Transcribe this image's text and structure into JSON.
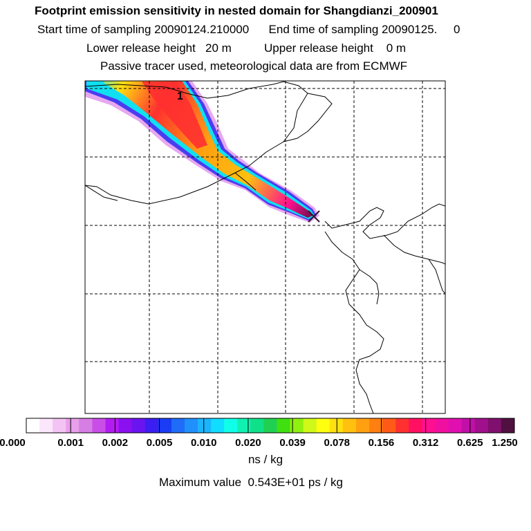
{
  "header": {
    "title": "Footprint emission sensitivity in nested domain for Shangdianzi_200901",
    "sampling_line": "Start time of sampling 20090124.210000      End time of sampling 20090125.     0",
    "release_line": "Lower release height   20 m          Upper release height    0 m",
    "tracer_line": "Passive tracer used, meteorological data are from ECMWF"
  },
  "map": {
    "release_label": "1",
    "grid_style": "dashed",
    "background": "#ffffff"
  },
  "colorbar": {
    "colors": [
      "#ffffff",
      "#fbe6fb",
      "#f3c4f3",
      "#e89fea",
      "#d77ee5",
      "#c94ee8",
      "#b31cf0",
      "#8a10f0",
      "#6a14f0",
      "#3c1ef2",
      "#1a3cf5",
      "#1f6cf8",
      "#2090fb",
      "#1cb4fd",
      "#10ddff",
      "#10ffe8",
      "#10f0b0",
      "#10e088",
      "#20d050",
      "#40e010",
      "#90f010",
      "#d0f818",
      "#ffff10",
      "#ffe010",
      "#ffc010",
      "#ffa010",
      "#ff8010",
      "#ff5a18",
      "#ff3030",
      "#ff1060",
      "#ff1090",
      "#f010a0",
      "#e010b0",
      "#c010a8",
      "#a0108c",
      "#80106e",
      "#501040"
    ],
    "tick_labels": [
      "0.000",
      "0.001",
      "0.002",
      "0.005",
      "0.010",
      "0.020",
      "0.039",
      "0.078",
      "0.156",
      "0.312",
      "0.625",
      "1.250"
    ],
    "units": "ns / kg"
  },
  "footer": {
    "max_value": "Maximum value  0.543E+01 ps / kg"
  }
}
